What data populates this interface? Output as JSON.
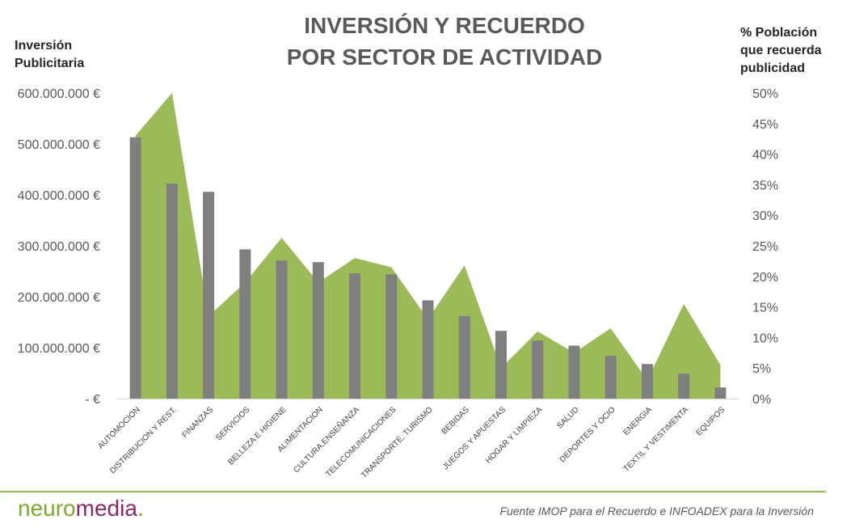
{
  "chart_data": {
    "type": "bar+area",
    "title_line1": "INVERSIÓN Y RECUERDO",
    "title_line2": "POR SECTOR DE ACTIVIDAD",
    "left_axis_label_line1": "Inversión",
    "left_axis_label_line2": "Publicitaria",
    "right_axis_label_line1": "% Población",
    "right_axis_label_line2": "que recuerda",
    "right_axis_label_line3": "publicidad",
    "categories": [
      "AUTOMOCION",
      "DISTRIBUCION Y REST.",
      "FINANZAS",
      "SERVICIOS",
      "BELLEZA E HIGIENE",
      "ALIMENTACION",
      "CULTURA,ENSEÑANZA",
      "TELECOMUNICACIONES",
      "TRANSPORTE, TURISMO",
      "BEBIDAS",
      "JUEGOS Y APUESTAS",
      "HOGAR Y LIMPIEZA",
      "SALUD",
      "DEPORTES Y OCIO",
      "ENERGIA",
      "TEXTIL Y VESTIMENTA",
      "EQUIPOS"
    ],
    "series": [
      {
        "type": "bar",
        "axis": "left",
        "color": "#7f7f7f",
        "values": [
          513000000,
          422000000,
          406000000,
          293000000,
          271000000,
          268000000,
          246000000,
          244000000,
          193000000,
          162000000,
          133000000,
          114000000,
          104000000,
          84000000,
          68000000,
          49000000,
          22000000
        ]
      },
      {
        "type": "area",
        "axis": "right",
        "color": "#9bbb59",
        "values": [
          43.0,
          50.0,
          13.5,
          19.0,
          26.3,
          19.0,
          23.0,
          21.5,
          13.0,
          21.8,
          5.0,
          11.0,
          7.5,
          11.5,
          3.0,
          15.5,
          5.5
        ]
      }
    ],
    "left_ticks": [
      "600.000.000 €",
      "500.000.000 €",
      "400.000.000 €",
      "300.000.000 €",
      "200.000.000 €",
      "100.000.000 €",
      "-   €"
    ],
    "right_ticks": [
      "50%",
      "45%",
      "40%",
      "35%",
      "30%",
      "25%",
      "20%",
      "15%",
      "10%",
      "5%",
      "0%"
    ],
    "ylim_left": [
      0,
      600000000
    ],
    "ylim_right": [
      0,
      50
    ],
    "grid": false,
    "legend": "none"
  },
  "footer": {
    "logo_part1": "neuro",
    "logo_part2": "media",
    "logo_dot": ".",
    "source": "Fuente IMOP para el Recuerdo e INFOADEX para la Inversión"
  },
  "colors": {
    "title": "#595959",
    "bars": "#7f7f7f",
    "area": "#9bbb59",
    "footer_line": "#8dc04a"
  }
}
